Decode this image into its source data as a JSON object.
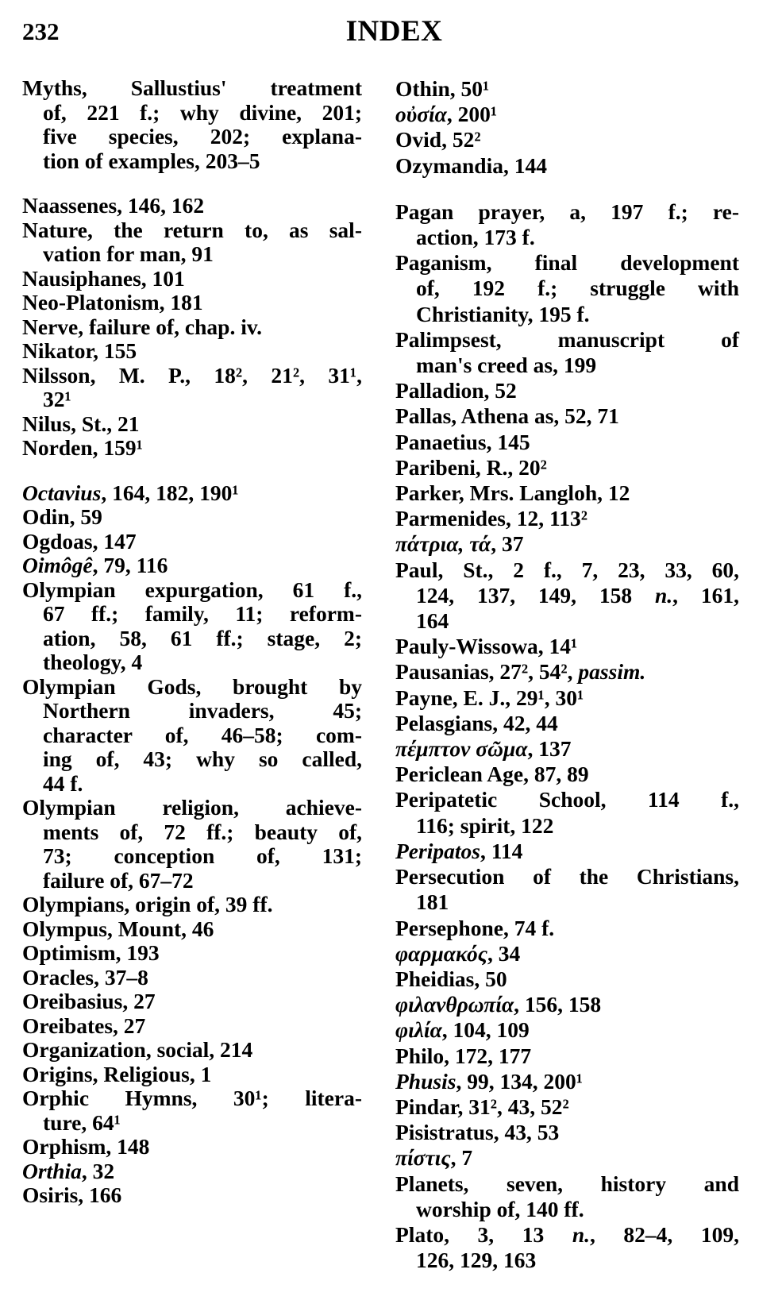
{
  "header": {
    "page_number": "232",
    "title": "INDEX"
  },
  "columns": [
    {
      "entries": [
        {
          "lines": [
            "Myths, Sallustius' treatment",
            "of, 221 f.; why divine, 201;",
            "five species, 202; explana-",
            "tion of examples, 203–5"
          ]
        },
        {
          "gap": true,
          "lines": [
            "Naassenes, 146, 162"
          ]
        },
        {
          "lines": [
            "Nature, the return to, as sal-",
            "vation for man, 91"
          ]
        },
        {
          "lines": [
            "Nausiphanes, 101"
          ]
        },
        {
          "lines": [
            "Neo-Platonism, 181"
          ]
        },
        {
          "lines": [
            "Nerve, failure of, chap. iv."
          ]
        },
        {
          "lines": [
            "Nikator, 155"
          ]
        },
        {
          "lines": [
            "Nilsson, M. P., 18², 21², 31¹,",
            "32¹"
          ]
        },
        {
          "lines": [
            "Nilus, St., 21"
          ]
        },
        {
          "lines": [
            "Norden, 159¹"
          ]
        },
        {
          "gap": true,
          "lines": [
            [
              {
                "i": "Octavius"
              },
              ", 164, 182, 190¹"
            ]
          ]
        },
        {
          "lines": [
            "Odin, 59"
          ]
        },
        {
          "lines": [
            "Ogdoas, 147"
          ]
        },
        {
          "lines": [
            [
              {
                "i": "Oimôgê"
              },
              ", 79, 116"
            ]
          ]
        },
        {
          "lines": [
            "Olympian expurgation, 61 f.,",
            "67 ff.; family, 11; reform-",
            "ation, 58, 61 ff.; stage, 2;",
            "theology, 4"
          ]
        },
        {
          "lines": [
            "Olympian Gods, brought by",
            "Northern invaders, 45;",
            "character of, 46–58; com-",
            "ing of, 43; why so called,",
            "44 f."
          ]
        },
        {
          "lines": [
            "Olympian religion, achieve-",
            "ments of, 72 ff.; beauty of,",
            "73; conception of, 131;",
            "failure of, 67–72"
          ]
        },
        {
          "lines": [
            "Olympians, origin of, 39 ff."
          ]
        },
        {
          "lines": [
            "Olympus, Mount, 46"
          ]
        },
        {
          "lines": [
            "Optimism, 193"
          ]
        },
        {
          "lines": [
            "Oracles, 37–8"
          ]
        },
        {
          "lines": [
            "Oreibasius, 27"
          ]
        },
        {
          "lines": [
            "Oreibates, 27"
          ]
        },
        {
          "lines": [
            "Organization, social, 214"
          ]
        },
        {
          "lines": [
            "Origins, Religious, 1"
          ]
        },
        {
          "lines": [
            "Orphic Hymns, 30¹; litera-",
            "ture, 64¹"
          ]
        },
        {
          "lines": [
            "Orphism, 148"
          ]
        },
        {
          "lines": [
            [
              {
                "i": "Orthia"
              },
              ", 32"
            ]
          ]
        },
        {
          "lines": [
            "Osiris, 166"
          ]
        }
      ]
    },
    {
      "entries": [
        {
          "lines": [
            "Othin, 50¹"
          ]
        },
        {
          "lines": [
            [
              {
                "i": "οὐσία"
              },
              ", 200¹"
            ]
          ]
        },
        {
          "lines": [
            "Ovid, 52²"
          ]
        },
        {
          "lines": [
            "Ozymandia, 144"
          ]
        },
        {
          "gap": true,
          "lines": [
            "Pagan prayer, a, 197 f.; re-",
            "action, 173 f."
          ]
        },
        {
          "lines": [
            "Paganism, final development",
            "of, 192 f.; struggle with",
            "Christianity, 195 f."
          ]
        },
        {
          "lines": [
            "Palimpsest, manuscript of",
            "man's creed as, 199"
          ]
        },
        {
          "lines": [
            "Palladion, 52"
          ]
        },
        {
          "lines": [
            "Pallas, Athena as, 52, 71"
          ]
        },
        {
          "lines": [
            "Panaetius, 145"
          ]
        },
        {
          "lines": [
            "Paribeni, R., 20²"
          ]
        },
        {
          "lines": [
            "Parker, Mrs. Langloh, 12"
          ]
        },
        {
          "lines": [
            "Parmenides, 12, 113²"
          ]
        },
        {
          "lines": [
            [
              {
                "i": "πάτρια, τά"
              },
              ", 37"
            ]
          ]
        },
        {
          "lines": [
            "Paul, St., 2 f., 7, 23, 33, 60,",
            [
              "124, 137, 149, 158 ",
              {
                "i": "n."
              },
              ", 161,"
            ],
            "164"
          ]
        },
        {
          "lines": [
            "Pauly-Wissowa, 14¹"
          ]
        },
        {
          "lines": [
            [
              "Pausanias, 27², 54², ",
              {
                "i": "passim."
              }
            ]
          ]
        },
        {
          "lines": [
            "Payne, E. J., 29¹, 30¹"
          ]
        },
        {
          "lines": [
            "Pelasgians, 42, 44"
          ]
        },
        {
          "lines": [
            [
              {
                "i": "πέμπτον σῶμα"
              },
              ", 137"
            ]
          ]
        },
        {
          "lines": [
            "Periclean Age, 87, 89"
          ]
        },
        {
          "lines": [
            "Peripatetic School, 114 f.,",
            "116; spirit, 122"
          ]
        },
        {
          "lines": [
            [
              {
                "i": "Peripatos"
              },
              ", 114"
            ]
          ]
        },
        {
          "lines": [
            "Persecution of the Christians,",
            "181"
          ]
        },
        {
          "lines": [
            "Persephone, 74 f."
          ]
        },
        {
          "lines": [
            [
              {
                "i": "φαρμακός"
              },
              ", 34"
            ]
          ]
        },
        {
          "lines": [
            "Pheidias, 50"
          ]
        },
        {
          "lines": [
            [
              {
                "i": "φιλανθρωπία"
              },
              ", 156, 158"
            ]
          ]
        },
        {
          "lines": [
            [
              {
                "i": "φιλία"
              },
              ", 104, 109"
            ]
          ]
        },
        {
          "lines": [
            "Philo, 172, 177"
          ]
        },
        {
          "lines": [
            [
              {
                "i": "Phusis"
              },
              ", 99, 134, 200¹"
            ]
          ]
        },
        {
          "lines": [
            "Pindar, 31², 43, 52²"
          ]
        },
        {
          "lines": [
            "Pisistratus, 43, 53"
          ]
        },
        {
          "lines": [
            [
              {
                "i": "πίστις"
              },
              ", 7"
            ]
          ]
        },
        {
          "lines": [
            "Planets, seven, history and",
            "worship of, 140 ff."
          ]
        },
        {
          "lines": [
            [
              "Plato, 3, 13 ",
              {
                "i": "n."
              },
              ", 82–4, 109,"
            ],
            "126, 129, 163"
          ]
        }
      ]
    }
  ]
}
